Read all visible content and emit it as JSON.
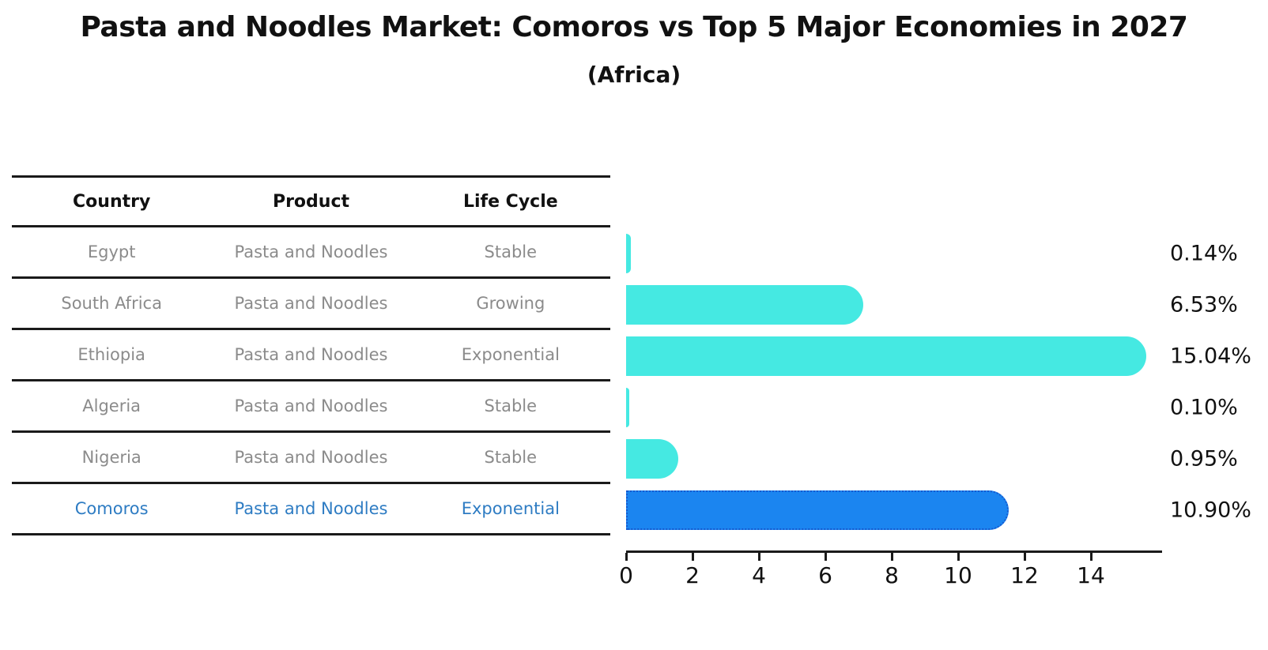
{
  "figure": {
    "title": "Pasta and Noodles Market: Comoros vs Top 5 Major Economies in 2027",
    "subtitle": "(Africa)"
  },
  "table": {
    "headers": [
      "Country",
      "Product",
      "Life Cycle"
    ],
    "rows": [
      {
        "country": "Egypt",
        "product": "Pasta and Noodles",
        "life_cycle": "Stable",
        "highlight": false
      },
      {
        "country": "South Africa",
        "product": "Pasta and Noodles",
        "life_cycle": "Growing",
        "highlight": false
      },
      {
        "country": "Ethiopia",
        "product": "Pasta and Noodles",
        "life_cycle": "Exponential",
        "highlight": false
      },
      {
        "country": "Algeria",
        "product": "Pasta and Noodles",
        "life_cycle": "Stable",
        "highlight": false
      },
      {
        "country": "Nigeria",
        "product": "Pasta and Noodles",
        "life_cycle": "Stable",
        "highlight": false
      },
      {
        "country": "Comoros",
        "product": "Pasta and Noodles",
        "life_cycle": "Exponential",
        "highlight": true
      }
    ]
  },
  "chart_data": {
    "type": "bar",
    "orientation": "horizontal",
    "title": "Pasta and Noodles Market: Comoros vs Top 5 Major Economies in 2027",
    "subtitle": "(Africa)",
    "categories": [
      "Egypt",
      "South Africa",
      "Ethiopia",
      "Algeria",
      "Nigeria",
      "Comoros"
    ],
    "values": [
      0.14,
      6.53,
      15.04,
      0.1,
      0.95,
      10.9
    ],
    "value_labels": [
      "0.14%",
      "6.53%",
      "15.04%",
      "0.10%",
      "0.95%",
      "10.90%"
    ],
    "xlabel": "",
    "ylabel": "",
    "xlim": [
      0,
      16.1
    ],
    "xticks": [
      0,
      2,
      4,
      6,
      8,
      10,
      12,
      14
    ],
    "grid": false,
    "legend": false,
    "highlight_index": 5
  },
  "colors": {
    "bar": "#45e9e2",
    "highlight_bar": "#1b85f0",
    "highlight_bar_border": "#1559cf",
    "highlight_text": "#2e7cc3",
    "text": "#111111",
    "muted_text": "#8b8b8b",
    "line": "#1a1a1a"
  }
}
